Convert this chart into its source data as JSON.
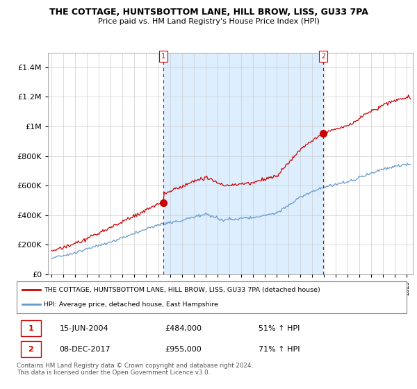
{
  "title": "THE COTTAGE, HUNTSBOTTOM LANE, HILL BROW, LISS, GU33 7PA",
  "subtitle": "Price paid vs. HM Land Registry's House Price Index (HPI)",
  "red_label": "THE COTTAGE, HUNTSBOTTOM LANE, HILL BROW, LISS, GU33 7PA (detached house)",
  "blue_label": "HPI: Average price, detached house, East Hampshire",
  "point1_date": "15-JUN-2004",
  "point1_price": 484000,
  "point1_label": "51% ↑ HPI",
  "point2_date": "08-DEC-2017",
  "point2_price": 955000,
  "point2_label": "71% ↑ HPI",
  "footer": "Contains HM Land Registry data © Crown copyright and database right 2024.\nThis data is licensed under the Open Government Licence v3.0.",
  "red_color": "#cc0000",
  "blue_color": "#6699cc",
  "shade_color": "#ddeeff",
  "ylim": [
    0,
    1500000
  ],
  "xlim_start": 1994.7,
  "xlim_end": 2025.5,
  "t1": 2004.458,
  "t2": 2017.958
}
